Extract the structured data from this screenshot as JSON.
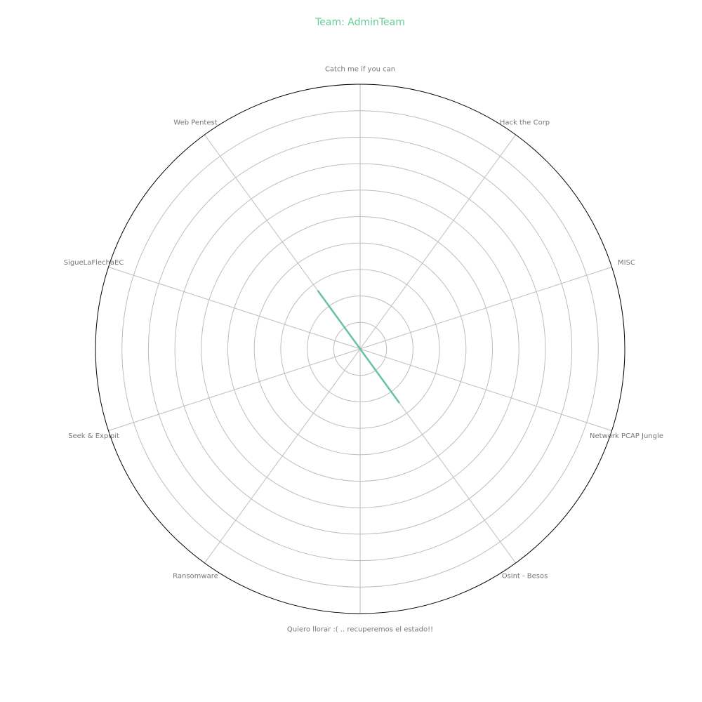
{
  "chart_data": {
    "type": "radar",
    "title": "Team: AdminTeam",
    "colors": {
      "title": "#66cc99",
      "series": "#66c2a0",
      "grid": "#bdbdbd",
      "frame": "#000000",
      "label": "#777777"
    },
    "categories": [
      "Catch me if you can",
      "Hack the Corp",
      "MISC",
      "Network PCAP Jungle",
      "Osint - Besos",
      "Quiero llorar :( .. recuperemos el estado!!",
      "Ransomware",
      "Seek & Exploit",
      "SigueLaFlechaEC",
      "Web Pentest"
    ],
    "series": [
      {
        "values": [
          0,
          0,
          0,
          0,
          2.5,
          0,
          0,
          0,
          0,
          2.7
        ]
      }
    ],
    "rlim": [
      0,
      10
    ],
    "ring_count": 10,
    "grid": true,
    "start_direction": "top",
    "rotation": "clockwise"
  }
}
